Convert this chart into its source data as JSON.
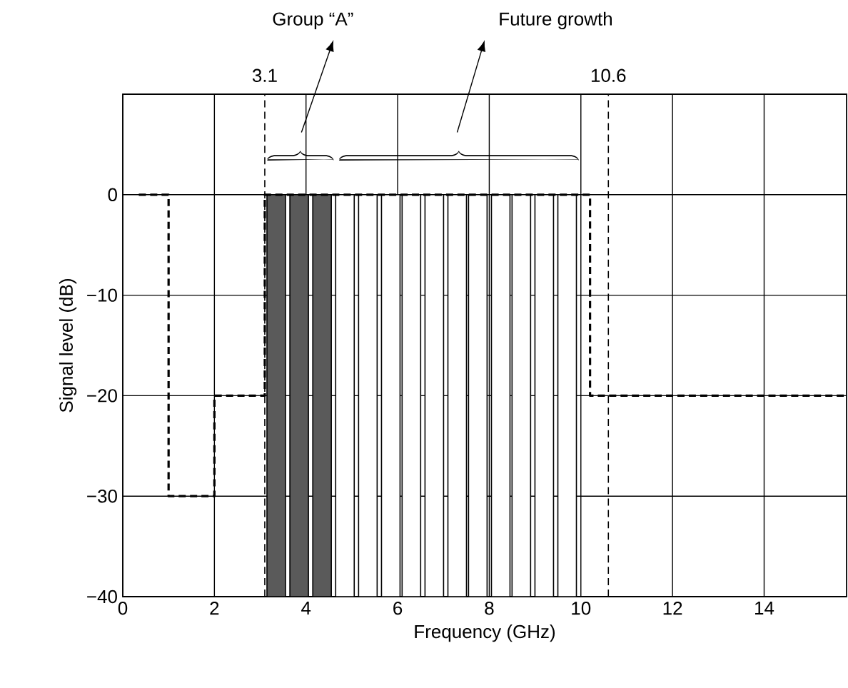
{
  "chart_data": {
    "type": "bar",
    "xlabel": "Frequency (GHz)",
    "ylabel": "Signal level (dB)",
    "xlim": [
      0,
      15.8
    ],
    "ylim": [
      -40,
      10
    ],
    "xticks": [
      0,
      2,
      4,
      6,
      8,
      10,
      12,
      14
    ],
    "yticks": [
      {
        "value": -40,
        "label": "−40"
      },
      {
        "value": -30,
        "label": "−30"
      },
      {
        "value": -20,
        "label": "−20"
      },
      {
        "value": -10,
        "label": "−10"
      },
      0
    ],
    "grid": true,
    "series": [
      {
        "x": [
          3.35,
          3.85,
          4.35,
          4.85,
          5.35,
          5.85,
          6.3,
          6.8,
          7.3,
          7.75,
          8.25,
          8.7,
          9.2,
          9.7
        ],
        "base": [
          -40,
          -40,
          -40,
          -40,
          -40,
          -40,
          -40,
          -40,
          -40,
          -40,
          -40,
          -40,
          -40,
          -40
        ],
        "values": [
          40,
          40,
          40,
          40,
          40,
          40,
          40,
          40,
          40,
          40,
          40,
          40,
          40,
          40
        ],
        "colors": [
          "#5a5a5a",
          "#5a5a5a",
          "#5a5a5a",
          "#ffffff",
          "#ffffff",
          "#ffffff",
          "#ffffff",
          "#ffffff",
          "#ffffff",
          "#ffffff",
          "#ffffff",
          "#ffffff",
          "#ffffff",
          "#ffffff"
        ]
      },
      {
        "type": "line",
        "x": [
          0.35,
          1,
          1,
          2,
          2,
          3.1,
          3.1,
          10.2,
          10.2,
          15.8
        ],
        "values": [
          0,
          0,
          -30,
          -30,
          -20,
          -20,
          0,
          0,
          -20,
          -20
        ],
        "color": "#000000",
        "line_style": "dashed"
      }
    ],
    "ref_lines": [
      {
        "axis": "x",
        "value": 3.1,
        "label": "3.1",
        "line_style": "dashed"
      },
      {
        "axis": "x",
        "value": 10.6,
        "label": "10.6",
        "line_style": "dashed"
      }
    ],
    "annotations": [
      "Group “A”",
      "Future growth"
    ]
  }
}
